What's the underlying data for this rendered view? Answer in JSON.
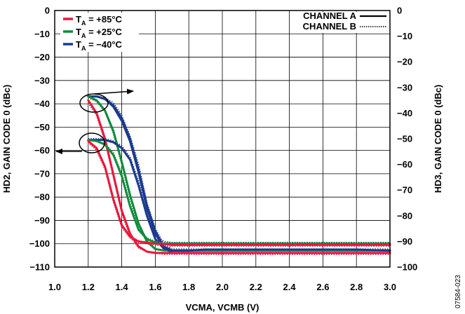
{
  "chart_data": {
    "type": "line",
    "x": [
      1.2,
      1.25,
      1.3,
      1.35,
      1.4,
      1.45,
      1.5,
      1.55,
      1.6,
      1.65,
      1.7,
      1.8,
      1.9,
      2.0,
      2.2,
      2.4,
      2.6,
      2.8,
      3.0
    ],
    "xlabel": "VCMA, VCMB (V)",
    "ylabel_left": "HD2, GAIN CODE 0 (dBc)",
    "ylabel_right": "HD3, GAIN CODE 0 (dBc)",
    "xlim": [
      1.0,
      3.0
    ],
    "ylim_left": [
      -110,
      0
    ],
    "ylim_right": [
      -100,
      0
    ],
    "xticks": [
      "1.0",
      "1.2",
      "1.4",
      "1.6",
      "1.8",
      "2.0",
      "2.2",
      "2.4",
      "2.6",
      "2.8",
      "3.0"
    ],
    "yticks_left": [
      "0",
      "−10",
      "−20",
      "−30",
      "−40",
      "−50",
      "−60",
      "−70",
      "−80",
      "−90",
      "−100",
      "−110"
    ],
    "yticks_right": [
      "0",
      "−10",
      "−20",
      "−30",
      "−40",
      "−50",
      "−60",
      "−70",
      "−80",
      "−90",
      "−100"
    ],
    "grid": true,
    "legend": {
      "temps": [
        {
          "prefix": "T",
          "sub": "A",
          "text": " = +85°C",
          "color": "#e8173a"
        },
        {
          "prefix": "T",
          "sub": "A",
          "text": " = +25°C",
          "color": "#0f8c3c"
        },
        {
          "prefix": "T",
          "sub": "A",
          "text": " = −40°C",
          "color": "#1c3a8c"
        }
      ],
      "channels": [
        {
          "label": "CHANNEL A",
          "style": "solid"
        },
        {
          "label": "CHANNEL B",
          "style": "dotted"
        }
      ]
    },
    "series": [
      {
        "color": "#1c3a8c",
        "axis": "right",
        "style": "solid",
        "y": [
          -33.5,
          -33.5,
          -34.5,
          -37,
          -42,
          -50,
          -62,
          -76,
          -86,
          -92,
          -93.5,
          -93.5,
          -93.5,
          -93.5,
          -93.5,
          -93.5,
          -93.5,
          -93.5,
          -93.5
        ]
      },
      {
        "color": "#1c3a8c",
        "axis": "right",
        "style": "dotted",
        "y": [
          -33.5,
          -33.5,
          -34,
          -36,
          -41,
          -49,
          -60,
          -75,
          -85,
          -91,
          -93,
          -93,
          -93,
          -93,
          -93,
          -93,
          -93,
          -93,
          -93
        ]
      },
      {
        "color": "#1c3a8c",
        "axis": "right",
        "style": "solid",
        "y": [
          -33.5,
          -33.5,
          -34.5,
          -37.5,
          -43,
          -51,
          -63,
          -77,
          -87,
          -92.5,
          -94.5,
          -94.5,
          -94.5,
          -94.5,
          -94.5,
          -94.5,
          -94.5,
          -94.5,
          -94.5
        ]
      },
      {
        "color": "#0f8c3c",
        "axis": "right",
        "style": "solid",
        "y": [
          -33.5,
          -35,
          -39,
          -47,
          -59,
          -72,
          -83,
          -90,
          -93,
          -93.5,
          -93.5,
          -93.5,
          -93.5,
          -93.5,
          -93.5,
          -93.5,
          -93.5,
          -93.5,
          -93.5
        ]
      },
      {
        "color": "#0f8c3c",
        "axis": "right",
        "style": "dotted",
        "y": [
          -34,
          -35.5,
          -39.5,
          -48,
          -60,
          -73,
          -84,
          -90.5,
          -93,
          -93.5,
          -93.5,
          -93.5,
          -93.5,
          -93.5,
          -93.5,
          -93.5,
          -93.5,
          -93.5,
          -93.5
        ]
      },
      {
        "color": "#e8173a",
        "axis": "right",
        "style": "solid",
        "y": [
          -35,
          -40,
          -50,
          -64,
          -78,
          -87,
          -92,
          -94,
          -94.5,
          -94.5,
          -94.5,
          -94.5,
          -94.5,
          -94.5,
          -94.5,
          -94.5,
          -94.5,
          -94.5,
          -94.5
        ]
      },
      {
        "color": "#e8173a",
        "axis": "right",
        "style": "dotted",
        "y": [
          -36,
          -41,
          -51,
          -65,
          -79,
          -88,
          -92.5,
          -94,
          -94.5,
          -95,
          -95,
          -95,
          -95,
          -95,
          -95,
          -95,
          -95,
          -95,
          -95
        ]
      },
      {
        "color": "#1c3a8c",
        "axis": "left",
        "style": "solid",
        "y": [
          -55.5,
          -55.5,
          -55.5,
          -56.5,
          -59,
          -64,
          -75,
          -88,
          -98,
          -102,
          -103,
          -103,
          -102.5,
          -102.5,
          -102.5,
          -102.5,
          -102.5,
          -102.5,
          -103
        ]
      },
      {
        "color": "#1c3a8c",
        "axis": "left",
        "style": "dotted",
        "y": [
          -55,
          -55,
          -55,
          -56,
          -58,
          -63,
          -73,
          -86,
          -96,
          -99,
          -99.5,
          -99.5,
          -99.5,
          -99.5,
          -99.5,
          -99.5,
          -99.5,
          -99.5,
          -99.5
        ]
      },
      {
        "color": "#0f8c3c",
        "axis": "left",
        "style": "solid",
        "y": [
          -55.5,
          -56,
          -57.5,
          -62,
          -71,
          -84,
          -94,
          -98,
          -99.5,
          -100,
          -100,
          -100,
          -100,
          -100,
          -100,
          -100,
          -100,
          -100,
          -100
        ]
      },
      {
        "color": "#0f8c3c",
        "axis": "left",
        "style": "dotted",
        "y": [
          -55.5,
          -56,
          -57,
          -61,
          -70,
          -83,
          -93,
          -97.5,
          -99,
          -99.5,
          -99.5,
          -99.5,
          -99.5,
          -99.5,
          -99.5,
          -99.5,
          -99.5,
          -99.5,
          -99.5
        ]
      },
      {
        "color": "#e8173a",
        "axis": "left",
        "style": "solid",
        "y": [
          -56,
          -59,
          -67,
          -81,
          -92,
          -97,
          -99,
          -99.5,
          -100,
          -100,
          -100.5,
          -100.5,
          -100.5,
          -100.5,
          -100.5,
          -100.5,
          -100.5,
          -100.5,
          -100.5
        ]
      },
      {
        "color": "#e8173a",
        "axis": "left",
        "style": "dotted",
        "y": [
          -56.5,
          -60,
          -68,
          -82,
          -93,
          -97.5,
          -99.5,
          -100,
          -100.5,
          -101,
          -101,
          -101,
          -101,
          -101,
          -101,
          -101,
          -101,
          -101,
          -101
        ]
      }
    ]
  },
  "figure_id": "07584-023"
}
